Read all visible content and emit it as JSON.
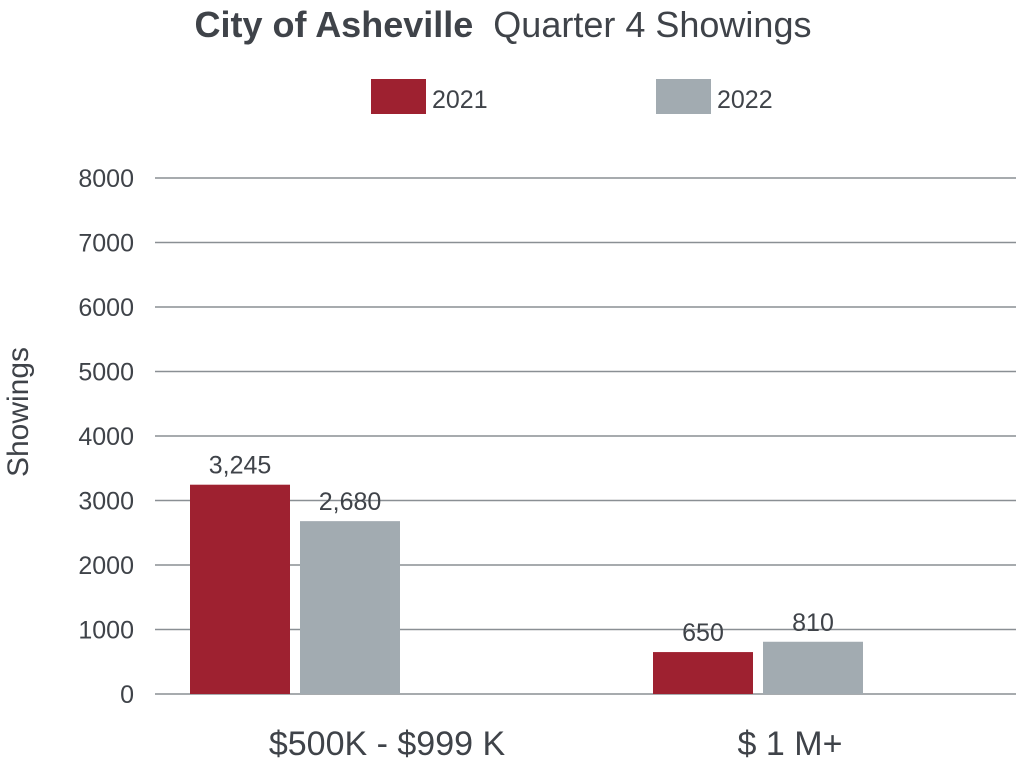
{
  "chart_data": {
    "type": "bar",
    "title": {
      "bold": "City of Asheville",
      "light": "Quarter 4 Showings"
    },
    "ylabel": "Showings",
    "xlabel": "",
    "categories": [
      "$500K - $999 K",
      "$ 1 M+"
    ],
    "series": [
      {
        "name": "2021",
        "values": [
          3245,
          650
        ],
        "labels": [
          "3,245",
          "650"
        ]
      },
      {
        "name": "2022",
        "values": [
          2680,
          810
        ],
        "labels": [
          "2,680",
          "810"
        ]
      }
    ],
    "yticks": [
      "0",
      "1000",
      "2000",
      "3000",
      "4000",
      "5000",
      "6000",
      "7000",
      "8000"
    ],
    "ylim": [
      0,
      8000
    ],
    "grid": true,
    "legend_position": "top-center"
  },
  "colors": {
    "series_2021": "#9e2130",
    "series_2022": "#a2abb1",
    "gridline": "#8a8f94",
    "text": "#3f4349"
  }
}
